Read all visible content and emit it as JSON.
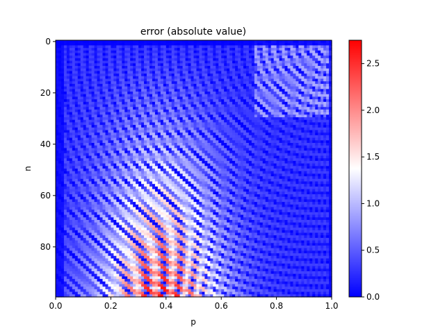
{
  "chart_data": {
    "type": "heatmap",
    "title": "error (absolute value)",
    "xlabel": "p",
    "ylabel": "n",
    "xlim": [
      0.0,
      1.0
    ],
    "ylim": [
      99,
      0
    ],
    "x_ticks": [
      0.0,
      0.2,
      0.4,
      0.6,
      0.8,
      1.0
    ],
    "x_tick_labels": [
      "0.0",
      "0.2",
      "0.4",
      "0.6",
      "0.8",
      "1.0"
    ],
    "y_ticks": [
      0,
      20,
      40,
      60,
      80
    ],
    "y_tick_labels": [
      "0",
      "20",
      "40",
      "60",
      "80"
    ],
    "grid": {
      "rows_n": 100,
      "cols_p": 100,
      "description_values": "error magnitude per (n, p) cell; low (~0) in blue near edges and upper-right, high (up to ~2.75) in red concentrated at large n and p between 0.2 and 0.6, with oscillating ring bands"
    },
    "colorbar": {
      "colormap": "bwr",
      "vmin": 0.0,
      "vmax": 2.75,
      "ticks": [
        0.0,
        0.5,
        1.0,
        1.5,
        2.0,
        2.5
      ],
      "tick_labels": [
        "0.0",
        "0.5",
        "1.0",
        "1.5",
        "2.0",
        "2.5"
      ],
      "colors": {
        "low": "#0000ff",
        "mid": "#ffffff",
        "high": "#ff0000"
      }
    }
  }
}
